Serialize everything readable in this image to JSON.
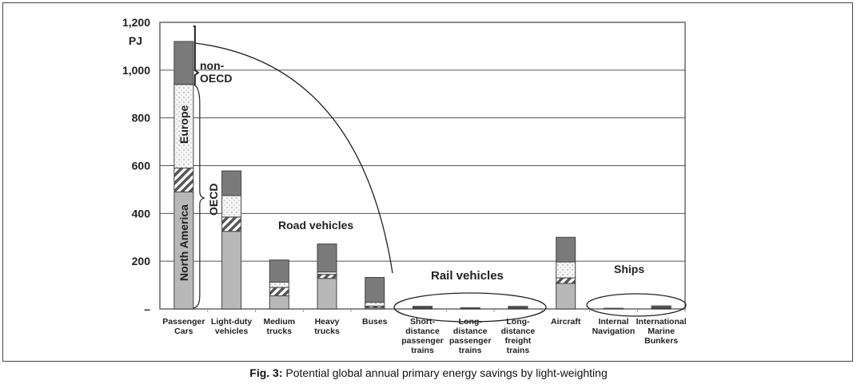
{
  "caption": {
    "label": "Fig. 3:",
    "text": " Potential global annual primary energy savings by light-weighting"
  },
  "chart_data": {
    "type": "bar",
    "stacked": true,
    "ylabel": "PJ",
    "ylim": [
      0,
      1200
    ],
    "yticks": [
      0,
      200,
      400,
      600,
      800,
      1000,
      1200
    ],
    "ytick_labels": [
      "–",
      "200",
      "400",
      "600",
      "800",
      "1,000",
      "1,200"
    ],
    "categories": [
      [
        "Passenger",
        "Cars"
      ],
      [
        "Light-duty",
        "vehicles"
      ],
      [
        "Medium",
        "trucks"
      ],
      [
        "Heavy",
        "trucks"
      ],
      [
        "Buses"
      ],
      [
        "Short-",
        "distance",
        "passenger",
        "trains"
      ],
      [
        "Long-",
        "distance",
        "passenger",
        "trains"
      ],
      [
        "Long-",
        "distance",
        "freight",
        "trains"
      ],
      [
        "Aircraft"
      ],
      [
        "Internal",
        "Navigation"
      ],
      [
        "International",
        "Marine",
        "Bunkers"
      ]
    ],
    "series": [
      {
        "name": "North America",
        "color": "#b8b8b8",
        "pattern": "solid",
        "values": [
          490,
          325,
          55,
          128,
          5,
          3,
          1,
          3,
          107,
          1,
          3
        ]
      },
      {
        "name": "",
        "color": "#555555",
        "pattern": "hatch",
        "values": [
          100,
          60,
          35,
          17,
          7,
          2,
          1,
          2,
          23,
          0,
          2
        ]
      },
      {
        "name": "Europe",
        "color": "#f4f4f4",
        "pattern": "dots",
        "values": [
          350,
          90,
          22,
          10,
          16,
          2,
          1,
          1,
          67,
          0,
          2
        ]
      },
      {
        "name": "non-OECD",
        "color": "#7a7a7a",
        "pattern": "solid",
        "values": [
          180,
          103,
          93,
          117,
          104,
          4,
          2,
          5,
          103,
          2,
          6
        ]
      }
    ],
    "annotations": {
      "north_america": "North America",
      "europe": "Europe",
      "oecd": "OECD",
      "non_oecd_1": "non-",
      "non_oecd_2": "OECD",
      "road": "Road vehicles",
      "rail": "Rail vehicles",
      "ships": "Ships"
    },
    "grid": true,
    "legend": "none"
  }
}
